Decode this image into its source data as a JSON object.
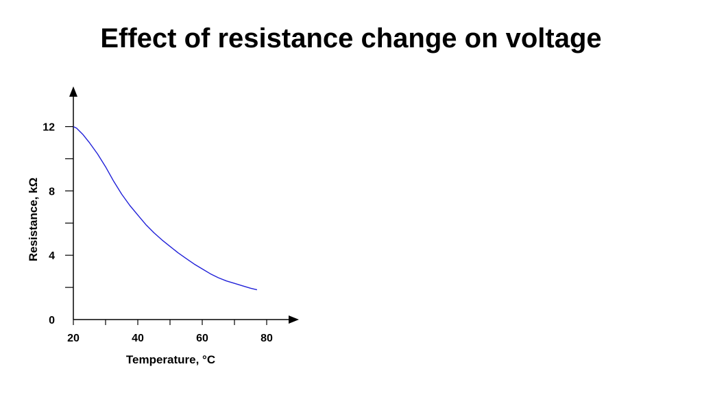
{
  "slide": {
    "title": "Effect of resistance change on voltage"
  },
  "chart_data": {
    "type": "line",
    "title": "",
    "xlabel": "Temperature, °C",
    "ylabel": "Resistance, kΩ",
    "xlim": [
      20,
      90
    ],
    "ylim": [
      0,
      14
    ],
    "x_ticks": [
      20,
      30,
      40,
      50,
      60,
      70,
      80
    ],
    "x_tick_labels": [
      "20",
      "",
      "40",
      "",
      "60",
      "",
      "80"
    ],
    "y_ticks": [
      0,
      2,
      4,
      6,
      8,
      10,
      12
    ],
    "y_tick_labels": [
      "0",
      "",
      "4",
      "",
      "8",
      "",
      "12"
    ],
    "grid": false,
    "legend": "none",
    "line_color": "#1f1fd8",
    "series": [
      {
        "x": [
          20,
          21,
          23,
          25,
          27.5,
          30,
          32.5,
          35,
          37.5,
          40,
          42.5,
          45,
          47.5,
          50,
          52.5,
          55,
          57.5,
          60,
          62.5,
          65,
          67.5,
          70,
          72.5,
          75,
          77
        ],
        "values": [
          12.0,
          11.9,
          11.5,
          11.0,
          10.3,
          9.5,
          8.6,
          7.8,
          7.1,
          6.5,
          5.9,
          5.4,
          4.95,
          4.55,
          4.15,
          3.8,
          3.45,
          3.15,
          2.85,
          2.6,
          2.4,
          2.25,
          2.1,
          1.95,
          1.85
        ]
      }
    ]
  }
}
